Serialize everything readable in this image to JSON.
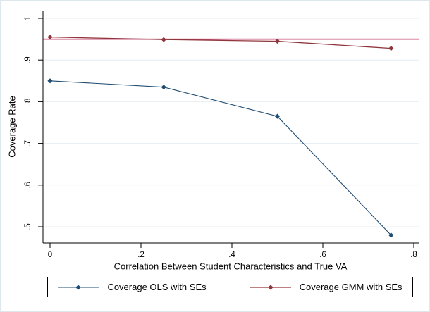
{
  "figure": {
    "background": "#ffffff",
    "border_color": "#dde8ee"
  },
  "chart_data": {
    "type": "line",
    "title": "",
    "xlabel": "Correlation Between Student Characteristics and True VA",
    "ylabel": "Coverage Rate",
    "xlim": [
      0,
      0.8
    ],
    "ylim": [
      0.5,
      1.0
    ],
    "xticks": {
      "values": [
        0,
        0.2,
        0.4,
        0.6,
        0.8
      ],
      "labels": [
        "0",
        ".2",
        ".4",
        ".6",
        ".8"
      ]
    },
    "yticks": {
      "values": [
        0.5,
        0.6,
        0.7,
        0.8,
        0.9,
        1.0
      ],
      "labels": [
        ".5",
        ".6",
        ".7",
        ".8",
        ".9",
        "1"
      ]
    },
    "grid": "horizontal",
    "grid_color": "#e4eef2",
    "axis_color": "#000000",
    "tick_label_rotation_y": -90,
    "x": [
      0,
      0.25,
      0.5,
      0.75
    ],
    "series": [
      {
        "name": "Coverage OLS with SEs",
        "values": [
          0.85,
          0.835,
          0.765,
          0.48
        ],
        "color": "#1f4c73",
        "marker": "diamond",
        "line_width": 1.1
      },
      {
        "name": "Coverage GMM with SEs",
        "values": [
          0.955,
          0.949,
          0.945,
          0.928
        ],
        "color": "#90353b",
        "marker": "diamond",
        "line_width": 1.3
      }
    ],
    "reference_line": {
      "y": 0.95,
      "color": "#b81049",
      "line_width": 1.5
    },
    "legend": {
      "position": "bottom",
      "border": true
    }
  }
}
